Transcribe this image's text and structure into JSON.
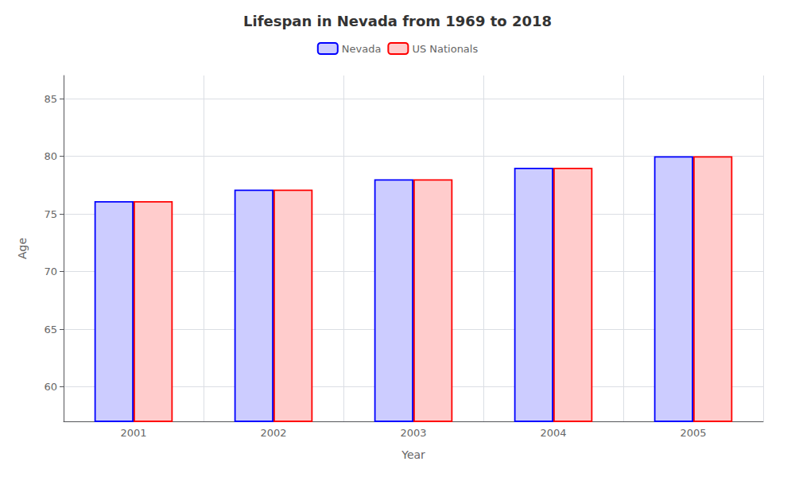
{
  "chart_data": {
    "type": "bar",
    "title": "Lifespan in Nevada from 1969 to 2018",
    "x_label": "Year",
    "y_label": "Age",
    "categories": [
      "2001",
      "2002",
      "2003",
      "2004",
      "2005"
    ],
    "series": [
      {
        "name": "Nevada",
        "color": "#0000ff",
        "values": [
          76.1,
          77.1,
          78.0,
          79.0,
          80.0
        ]
      },
      {
        "name": "US Nationals",
        "color": "#ff0000",
        "values": [
          76.1,
          77.1,
          78.0,
          79.0,
          80.0
        ]
      }
    ],
    "ylim": [
      57,
      87
    ],
    "yticks": [
      60,
      65,
      70,
      75,
      80,
      85
    ],
    "grid": true,
    "legend": "top"
  }
}
